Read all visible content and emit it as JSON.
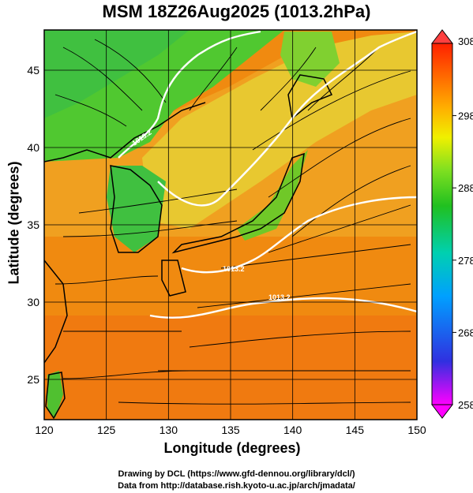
{
  "title": "MSM 18Z26Aug2025 (1013.2hPa)",
  "xlabel": "Longitude (degrees)",
  "ylabel": "Latitude  (degrees)",
  "x_ticks": [
    "120",
    "125",
    "130",
    "135",
    "140",
    "145",
    "150"
  ],
  "y_ticks": [
    "25",
    "30",
    "35",
    "40",
    "45"
  ],
  "colorbar": {
    "min": 258,
    "max": 308,
    "labels": [
      "308",
      "298",
      "288",
      "278",
      "268",
      "258"
    ],
    "colors": [
      "#ff00ff",
      "#3030e0",
      "#00b0ff",
      "#00d0b0",
      "#20c020",
      "#80e020",
      "#f0f000",
      "#ffb000",
      "#ff6000",
      "#ff2000"
    ]
  },
  "contour_labels": [
    "1013.2",
    "1013.2",
    "1013.2"
  ],
  "credits": {
    "line1": "Drawing by DCL (https://www.gfd-dennou.org/library/dcl/)",
    "line2": "Data from http://database.rish.kyoto-u.ac.jp/arch/jmadata/"
  },
  "map": {
    "lon_range": [
      120,
      150
    ],
    "lat_range": [
      22.4,
      47.6
    ],
    "field": "temperature (K) shaded, surface streamlines, 1013.2hPa isobar"
  }
}
